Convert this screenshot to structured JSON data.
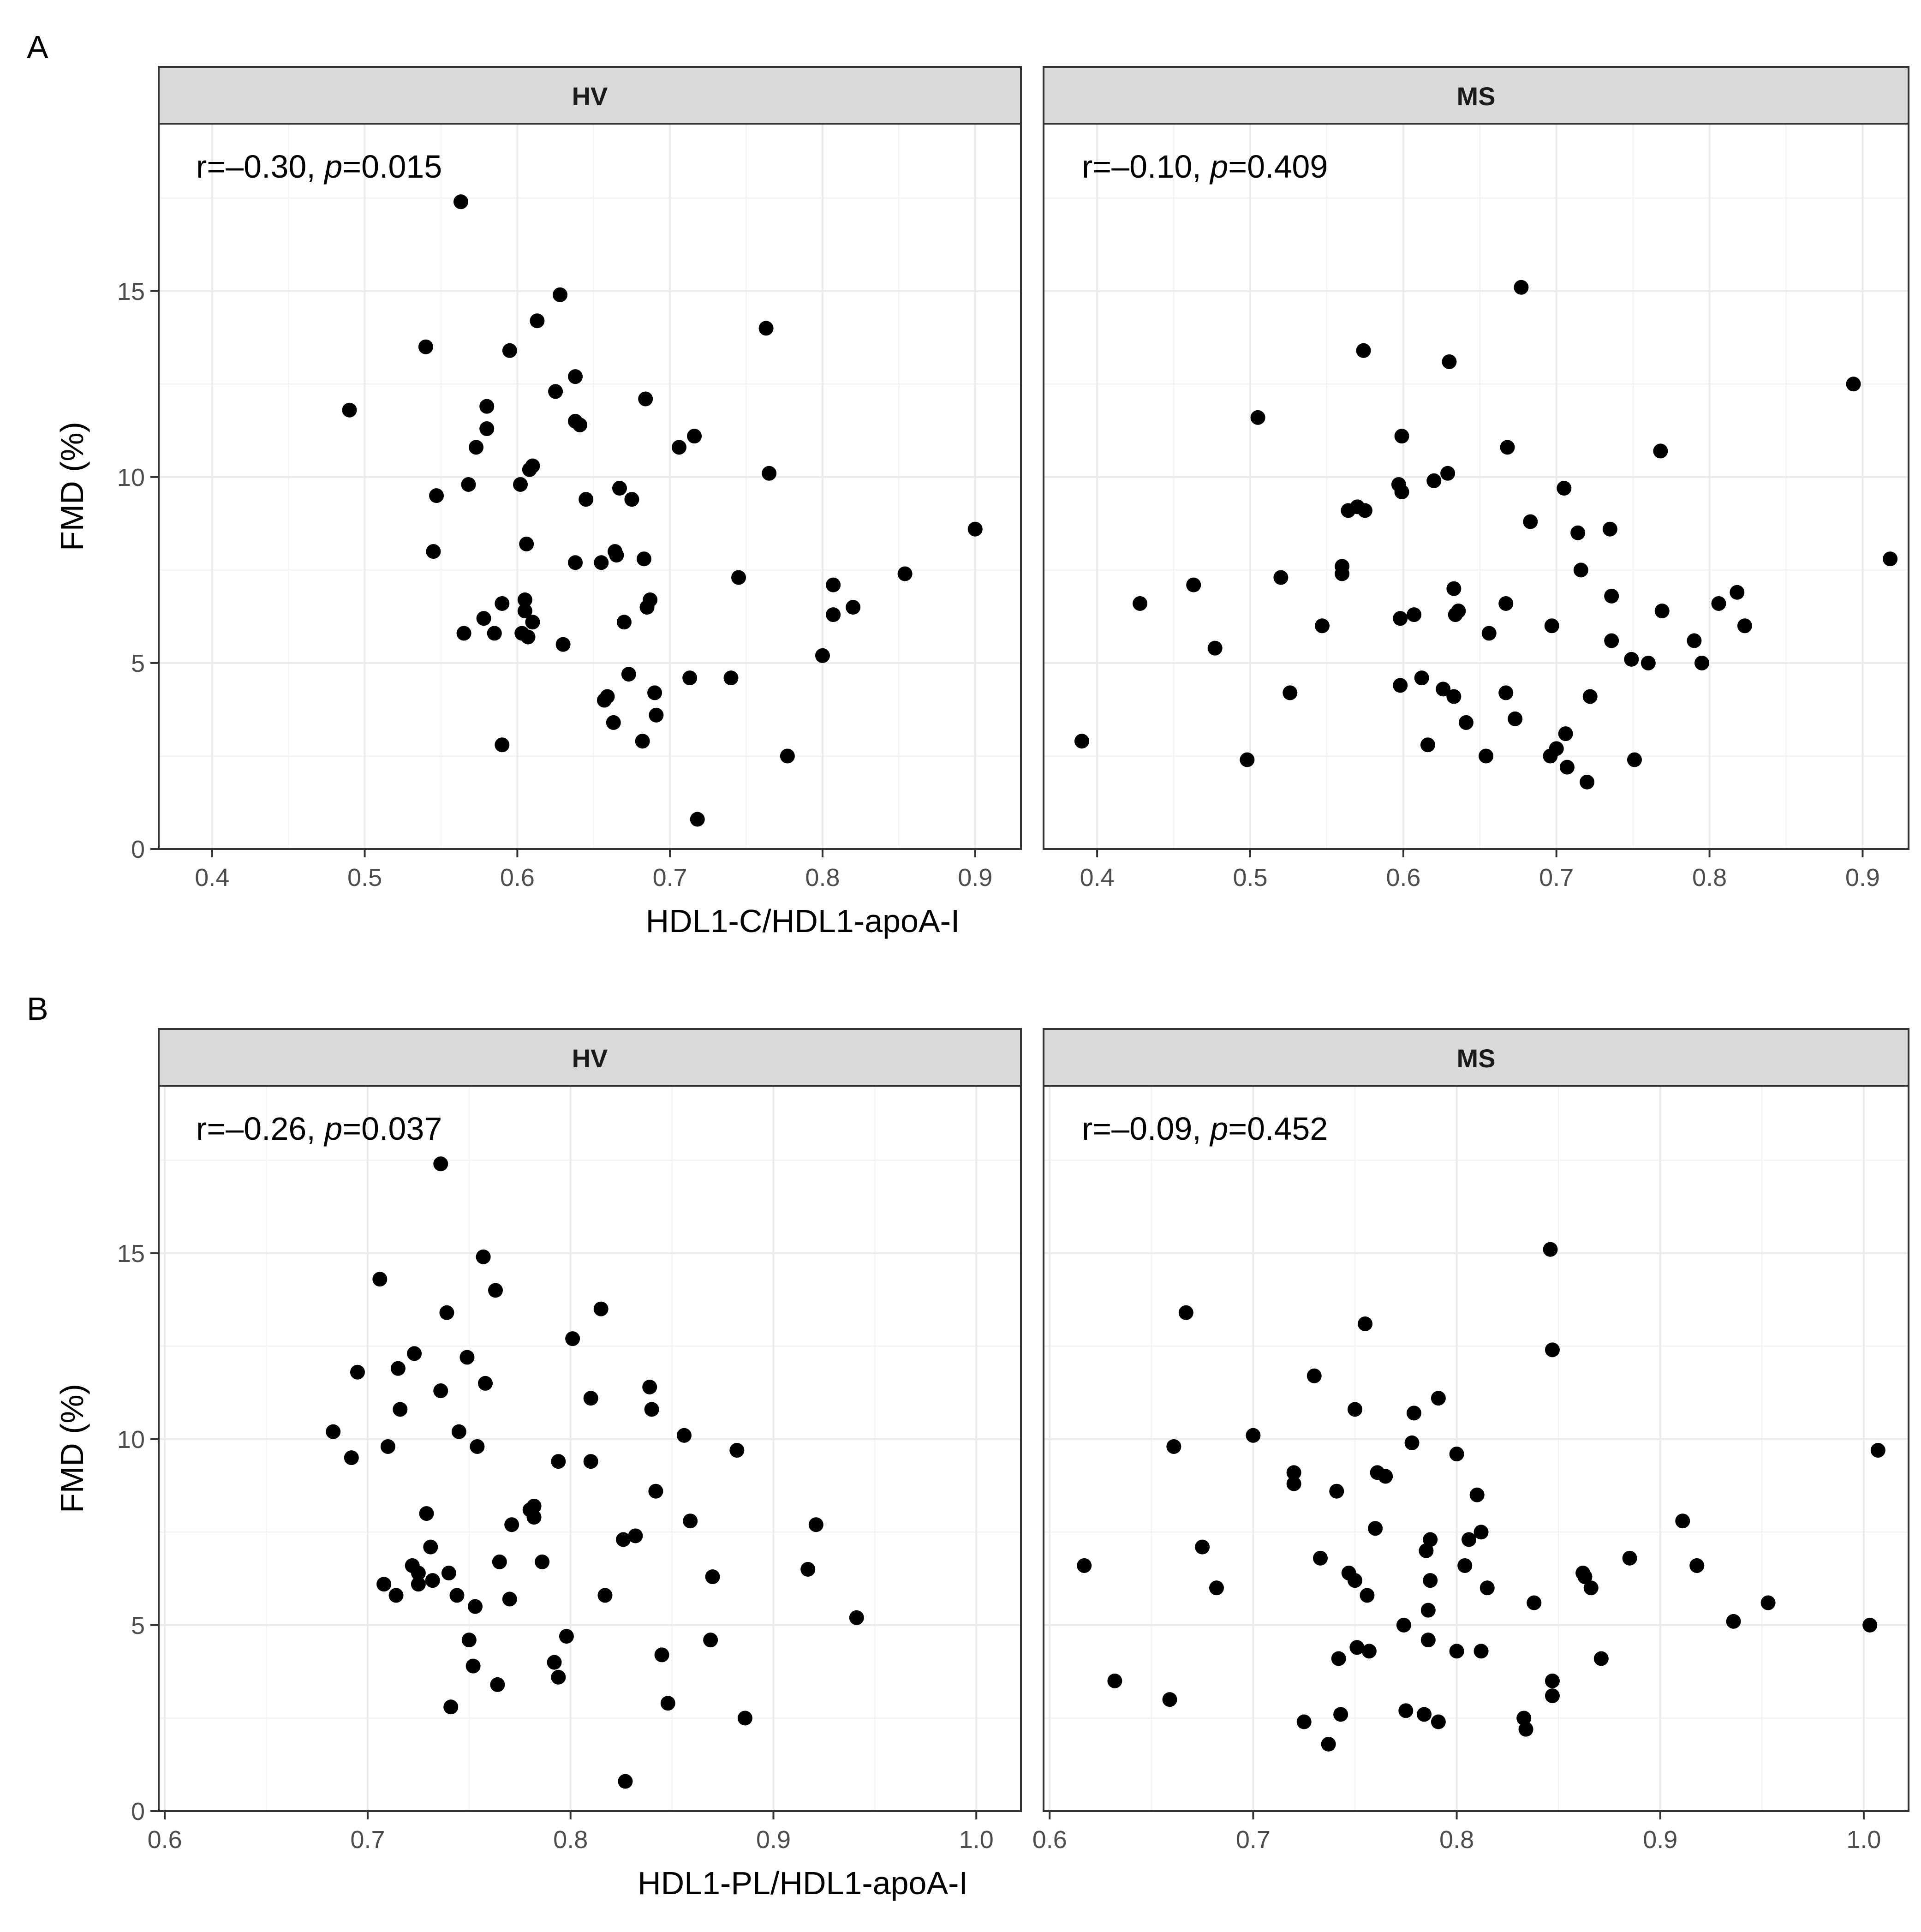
{
  "figure": {
    "ylabel": "FMD (%)",
    "ytick_labels": [
      "0",
      "5",
      "10",
      "15"
    ]
  },
  "chart_data": [
    {
      "type": "scatter",
      "panel_label": "A",
      "xlabel": "HDL1-C/HDL1-apoA-I",
      "ylabel": "FMD (%)",
      "xlim": [
        0.365,
        0.93
      ],
      "ylim": [
        0,
        19.5
      ],
      "xticks": [
        0.4,
        0.5,
        0.6,
        0.7,
        0.8,
        0.9
      ],
      "xtick_labels": [
        "0.4",
        "0.5",
        "0.6",
        "0.7",
        "0.8",
        "0.9"
      ],
      "yticks": [
        0,
        5,
        10,
        15
      ],
      "ytick_labels": [
        "0",
        "5",
        "10",
        "15"
      ],
      "facets": [
        {
          "name": "HV",
          "annotation": {
            "r": "r=–0.30, ",
            "p_symbol": "p",
            "p": "=0.015"
          },
          "points": [
            [
              0.49,
              11.8
            ],
            [
              0.54,
              13.5
            ],
            [
              0.545,
              8.0
            ],
            [
              0.547,
              9.5
            ],
            [
              0.563,
              17.4
            ],
            [
              0.565,
              5.8
            ],
            [
              0.568,
              9.8
            ],
            [
              0.573,
              10.8
            ],
            [
              0.578,
              6.2
            ],
            [
              0.58,
              11.9
            ],
            [
              0.58,
              11.3
            ],
            [
              0.585,
              5.8
            ],
            [
              0.59,
              6.6
            ],
            [
              0.59,
              2.8
            ],
            [
              0.595,
              13.4
            ],
            [
              0.602,
              9.8
            ],
            [
              0.603,
              5.8
            ],
            [
              0.605,
              6.7
            ],
            [
              0.605,
              6.4
            ],
            [
              0.606,
              8.2
            ],
            [
              0.607,
              5.7
            ],
            [
              0.608,
              10.2
            ],
            [
              0.61,
              10.3
            ],
            [
              0.61,
              6.1
            ],
            [
              0.613,
              14.2
            ],
            [
              0.625,
              12.3
            ],
            [
              0.628,
              14.9
            ],
            [
              0.63,
              5.5
            ],
            [
              0.638,
              12.7
            ],
            [
              0.638,
              11.5
            ],
            [
              0.638,
              7.7
            ],
            [
              0.641,
              11.4
            ],
            [
              0.645,
              9.4
            ],
            [
              0.655,
              7.7
            ],
            [
              0.657,
              4.0
            ],
            [
              0.659,
              4.1
            ],
            [
              0.663,
              3.4
            ],
            [
              0.664,
              8.0
            ],
            [
              0.665,
              7.9
            ],
            [
              0.667,
              9.7
            ],
            [
              0.67,
              6.1
            ],
            [
              0.673,
              4.7
            ],
            [
              0.675,
              9.4
            ],
            [
              0.682,
              2.9
            ],
            [
              0.683,
              7.8
            ],
            [
              0.684,
              12.1
            ],
            [
              0.685,
              6.5
            ],
            [
              0.687,
              6.7
            ],
            [
              0.69,
              4.2
            ],
            [
              0.691,
              3.6
            ],
            [
              0.706,
              10.8
            ],
            [
              0.713,
              4.6
            ],
            [
              0.716,
              11.1
            ],
            [
              0.718,
              0.8
            ],
            [
              0.74,
              4.6
            ],
            [
              0.745,
              7.3
            ],
            [
              0.763,
              14.0
            ],
            [
              0.765,
              10.1
            ],
            [
              0.777,
              2.5
            ],
            [
              0.8,
              5.2
            ],
            [
              0.807,
              7.1
            ],
            [
              0.807,
              6.3
            ],
            [
              0.82,
              6.5
            ],
            [
              0.854,
              7.4
            ],
            [
              0.9,
              8.6
            ]
          ]
        },
        {
          "name": "MS",
          "annotation": {
            "r": "r=–0.10, ",
            "p_symbol": "p",
            "p": "=0.409"
          },
          "points": [
            [
              0.39,
              2.9
            ],
            [
              0.428,
              6.6
            ],
            [
              0.463,
              7.1
            ],
            [
              0.477,
              5.4
            ],
            [
              0.498,
              2.4
            ],
            [
              0.505,
              11.6
            ],
            [
              0.52,
              7.3
            ],
            [
              0.526,
              4.2
            ],
            [
              0.547,
              6.0
            ],
            [
              0.56,
              7.6
            ],
            [
              0.56,
              7.4
            ],
            [
              0.564,
              9.1
            ],
            [
              0.57,
              9.2
            ],
            [
              0.574,
              13.4
            ],
            [
              0.575,
              9.1
            ],
            [
              0.597,
              9.8
            ],
            [
              0.598,
              6.2
            ],
            [
              0.598,
              4.4
            ],
            [
              0.599,
              11.1
            ],
            [
              0.599,
              9.6
            ],
            [
              0.607,
              6.3
            ],
            [
              0.612,
              4.6
            ],
            [
              0.616,
              2.8
            ],
            [
              0.62,
              9.9
            ],
            [
              0.626,
              4.3
            ],
            [
              0.629,
              10.1
            ],
            [
              0.63,
              13.1
            ],
            [
              0.633,
              4.1
            ],
            [
              0.633,
              7.0
            ],
            [
              0.634,
              6.3
            ],
            [
              0.636,
              6.4
            ],
            [
              0.641,
              3.4
            ],
            [
              0.654,
              2.5
            ],
            [
              0.656,
              5.8
            ],
            [
              0.667,
              6.6
            ],
            [
              0.667,
              4.2
            ],
            [
              0.668,
              10.8
            ],
            [
              0.673,
              3.5
            ],
            [
              0.677,
              15.1
            ],
            [
              0.683,
              8.8
            ],
            [
              0.696,
              2.5
            ],
            [
              0.697,
              6.0
            ],
            [
              0.7,
              2.7
            ],
            [
              0.705,
              9.7
            ],
            [
              0.706,
              3.1
            ],
            [
              0.707,
              2.2
            ],
            [
              0.714,
              8.5
            ],
            [
              0.716,
              7.5
            ],
            [
              0.72,
              1.8
            ],
            [
              0.722,
              4.1
            ],
            [
              0.735,
              8.6
            ],
            [
              0.736,
              6.8
            ],
            [
              0.736,
              5.6
            ],
            [
              0.749,
              5.1
            ],
            [
              0.751,
              2.4
            ],
            [
              0.76,
              5.0
            ],
            [
              0.768,
              10.7
            ],
            [
              0.769,
              6.4
            ],
            [
              0.79,
              5.6
            ],
            [
              0.795,
              5.0
            ],
            [
              0.806,
              6.6
            ],
            [
              0.818,
              6.9
            ],
            [
              0.823,
              6.0
            ],
            [
              0.894,
              12.5
            ],
            [
              0.918,
              7.8
            ]
          ]
        }
      ]
    },
    {
      "type": "scatter",
      "panel_label": "B",
      "xlabel": "HDL1-PL/HDL1-apoA-I",
      "ylabel": "FMD (%)",
      "xlim": [
        0.597,
        1.022
      ],
      "ylim": [
        0,
        19.5
      ],
      "xticks": [
        0.6,
        0.7,
        0.8,
        0.9,
        1.0
      ],
      "xtick_labels": [
        "0.6",
        "0.7",
        "0.8",
        "0.9",
        "1.0"
      ],
      "yticks": [
        0,
        5,
        10,
        15
      ],
      "ytick_labels": [
        "0",
        "5",
        "10",
        "15"
      ],
      "facets": [
        {
          "name": "HV",
          "annotation": {
            "r": "r=–0.26, ",
            "p_symbol": "p",
            "p": "=0.037"
          },
          "points": [
            [
              0.683,
              10.2
            ],
            [
              0.692,
              9.5
            ],
            [
              0.695,
              11.8
            ],
            [
              0.706,
              14.3
            ],
            [
              0.708,
              6.1
            ],
            [
              0.71,
              9.8
            ],
            [
              0.714,
              5.8
            ],
            [
              0.715,
              11.9
            ],
            [
              0.716,
              10.8
            ],
            [
              0.722,
              6.6
            ],
            [
              0.723,
              12.3
            ],
            [
              0.725,
              6.4
            ],
            [
              0.725,
              6.1
            ],
            [
              0.729,
              8.0
            ],
            [
              0.731,
              7.1
            ],
            [
              0.732,
              6.2
            ],
            [
              0.736,
              11.3
            ],
            [
              0.736,
              17.4
            ],
            [
              0.739,
              13.4
            ],
            [
              0.74,
              6.4
            ],
            [
              0.741,
              2.8
            ],
            [
              0.744,
              5.8
            ],
            [
              0.745,
              10.2
            ],
            [
              0.749,
              12.2
            ],
            [
              0.75,
              4.6
            ],
            [
              0.752,
              3.9
            ],
            [
              0.753,
              5.5
            ],
            [
              0.754,
              9.8
            ],
            [
              0.757,
              14.9
            ],
            [
              0.758,
              11.5
            ],
            [
              0.763,
              14.0
            ],
            [
              0.764,
              3.4
            ],
            [
              0.765,
              6.7
            ],
            [
              0.77,
              5.7
            ],
            [
              0.771,
              7.7
            ],
            [
              0.78,
              8.1
            ],
            [
              0.782,
              8.2
            ],
            [
              0.782,
              7.9
            ],
            [
              0.786,
              6.7
            ],
            [
              0.792,
              4.0
            ],
            [
              0.794,
              3.6
            ],
            [
              0.794,
              9.4
            ],
            [
              0.798,
              4.7
            ],
            [
              0.801,
              12.7
            ],
            [
              0.81,
              11.1
            ],
            [
              0.81,
              9.4
            ],
            [
              0.815,
              13.5
            ],
            [
              0.817,
              5.8
            ],
            [
              0.826,
              7.3
            ],
            [
              0.827,
              0.8
            ],
            [
              0.832,
              7.4
            ],
            [
              0.839,
              11.4
            ],
            [
              0.84,
              10.8
            ],
            [
              0.842,
              8.6
            ],
            [
              0.845,
              4.2
            ],
            [
              0.848,
              2.9
            ],
            [
              0.856,
              10.1
            ],
            [
              0.859,
              7.8
            ],
            [
              0.869,
              4.6
            ],
            [
              0.87,
              6.3
            ],
            [
              0.882,
              9.7
            ],
            [
              0.886,
              2.5
            ],
            [
              0.917,
              6.5
            ],
            [
              0.921,
              7.7
            ],
            [
              0.941,
              5.2
            ]
          ]
        },
        {
          "name": "MS",
          "annotation": {
            "r": "r=–0.09, ",
            "p_symbol": "p",
            "p": "=0.452"
          },
          "points": [
            [
              0.617,
              6.6
            ],
            [
              0.632,
              3.5
            ],
            [
              0.659,
              3.0
            ],
            [
              0.661,
              9.8
            ],
            [
              0.667,
              13.4
            ],
            [
              0.675,
              7.1
            ],
            [
              0.682,
              6.0
            ],
            [
              0.7,
              10.1
            ],
            [
              0.72,
              9.1
            ],
            [
              0.72,
              8.8
            ],
            [
              0.725,
              2.4
            ],
            [
              0.73,
              11.7
            ],
            [
              0.733,
              6.8
            ],
            [
              0.737,
              1.8
            ],
            [
              0.741,
              8.6
            ],
            [
              0.742,
              4.1
            ],
            [
              0.743,
              2.6
            ],
            [
              0.747,
              6.4
            ],
            [
              0.75,
              10.8
            ],
            [
              0.75,
              6.2
            ],
            [
              0.751,
              4.4
            ],
            [
              0.755,
              13.1
            ],
            [
              0.756,
              5.8
            ],
            [
              0.757,
              4.3
            ],
            [
              0.76,
              7.6
            ],
            [
              0.761,
              9.1
            ],
            [
              0.765,
              9.0
            ],
            [
              0.774,
              5.0
            ],
            [
              0.775,
              2.7
            ],
            [
              0.778,
              9.9
            ],
            [
              0.779,
              10.7
            ],
            [
              0.784,
              2.6
            ],
            [
              0.785,
              7.0
            ],
            [
              0.786,
              4.6
            ],
            [
              0.786,
              5.4
            ],
            [
              0.787,
              7.3
            ],
            [
              0.787,
              6.2
            ],
            [
              0.791,
              11.1
            ],
            [
              0.791,
              2.4
            ],
            [
              0.8,
              9.6
            ],
            [
              0.8,
              4.3
            ],
            [
              0.804,
              6.6
            ],
            [
              0.806,
              7.3
            ],
            [
              0.81,
              8.5
            ],
            [
              0.812,
              7.5
            ],
            [
              0.812,
              4.3
            ],
            [
              0.815,
              6.0
            ],
            [
              0.833,
              2.5
            ],
            [
              0.834,
              2.2
            ],
            [
              0.838,
              5.6
            ],
            [
              0.846,
              15.1
            ],
            [
              0.847,
              3.1
            ],
            [
              0.847,
              12.4
            ],
            [
              0.847,
              3.5
            ],
            [
              0.862,
              6.4
            ],
            [
              0.863,
              6.3
            ],
            [
              0.866,
              6.0
            ],
            [
              0.871,
              4.1
            ],
            [
              0.885,
              6.8
            ],
            [
              0.911,
              7.8
            ],
            [
              0.918,
              6.6
            ],
            [
              0.936,
              5.1
            ],
            [
              0.953,
              5.6
            ],
            [
              1.003,
              5.0
            ],
            [
              1.007,
              9.7
            ]
          ]
        }
      ]
    }
  ]
}
